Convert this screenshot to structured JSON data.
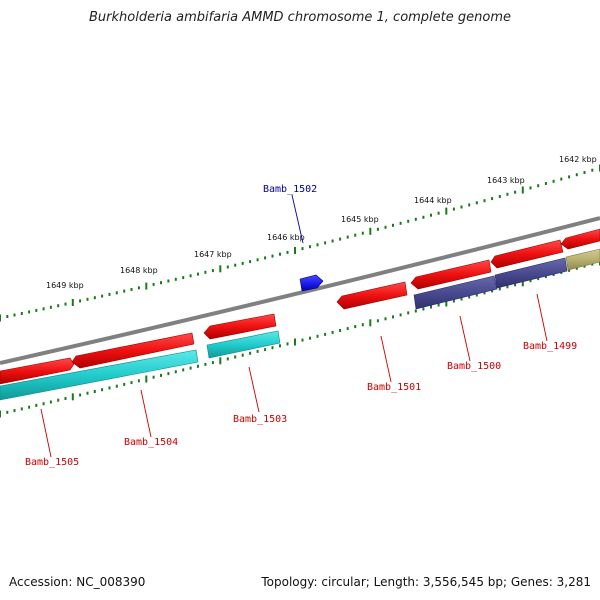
{
  "title": "Burkholderia ambifaria AMMD chromosome 1, complete genome",
  "footer": {
    "accession": "Accession: NC_008390",
    "summary": "Topology: circular; Length: 3,556,545 bp; Genes: 3,281"
  },
  "colors": {
    "backbone": "#808080",
    "tick": "#1a7a1a",
    "gene_red": "#ee1111",
    "gene_cyan": "#22cccc",
    "gene_purple": "#4a4a90",
    "gene_khaki": "#b8b070",
    "gene_blue": "#1f1fee",
    "label_red": "#cc0000",
    "label_blue": "#000099"
  },
  "ticks": [
    {
      "label": "1649 kbp"
    },
    {
      "label": "1648 kbp"
    },
    {
      "label": "1647 kbp"
    },
    {
      "label": "1646 kbp"
    },
    {
      "label": "1645 kbp"
    },
    {
      "label": "1644 kbp"
    },
    {
      "label": "1643 kbp"
    },
    {
      "label": "1642 kbp"
    }
  ],
  "genes": [
    {
      "name": "Bamb_1505",
      "color": "red"
    },
    {
      "name": "Bamb_1504",
      "color": "red"
    },
    {
      "name": "Bamb_1503",
      "color": "red"
    },
    {
      "name": "Bamb_1502",
      "color": "blue"
    },
    {
      "name": "Bamb_1501",
      "color": "red"
    },
    {
      "name": "Bamb_1500",
      "color": "red"
    },
    {
      "name": "Bamb_1499",
      "color": "red"
    }
  ]
}
